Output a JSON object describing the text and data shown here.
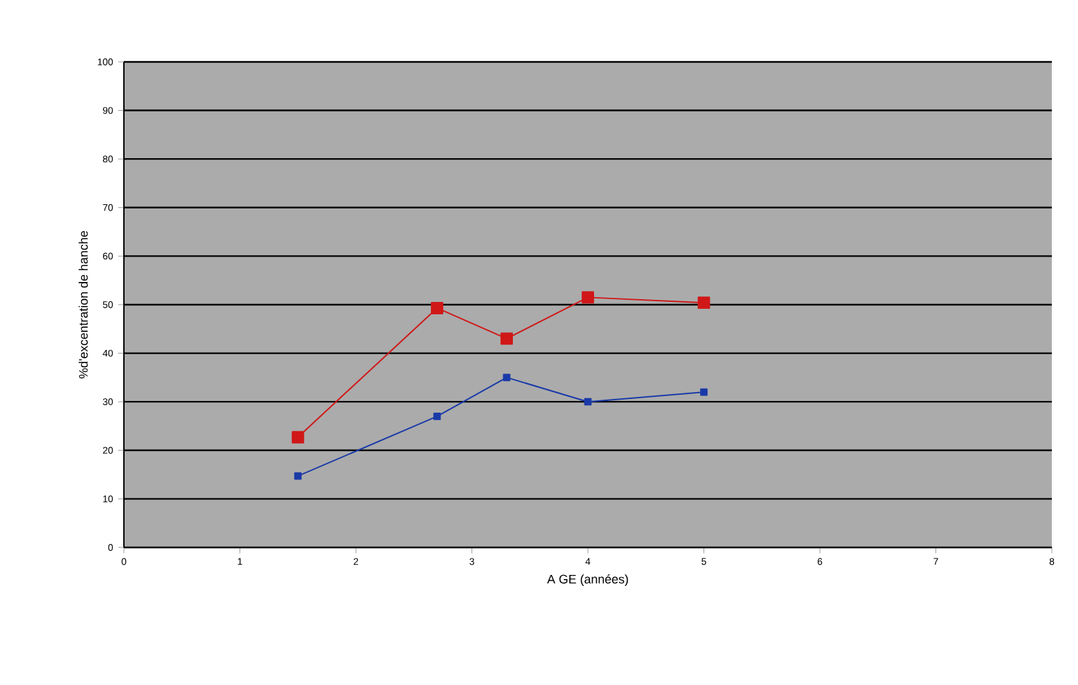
{
  "chart_data": {
    "type": "line",
    "xlabel": "A GE (années)",
    "ylabel": "%d'excentration de hanche",
    "x": [
      1.5,
      2.7,
      3.3,
      4,
      5
    ],
    "series": [
      {
        "color": "#d01818",
        "values": [
          22.7,
          49.3,
          43,
          51.5,
          50.4
        ],
        "marker": "square"
      },
      {
        "color": "#1a3aa8",
        "values": [
          14.7,
          27,
          35,
          30,
          32
        ],
        "marker": "square"
      }
    ],
    "xlim": [
      0,
      8
    ],
    "xticks": [
      0,
      1,
      2,
      3,
      4,
      5,
      6,
      7,
      8
    ],
    "ylim": [
      0,
      100
    ],
    "yticks": [
      0,
      10,
      20,
      30,
      40,
      50,
      60,
      70,
      80,
      90,
      100
    ],
    "grid": "y"
  }
}
